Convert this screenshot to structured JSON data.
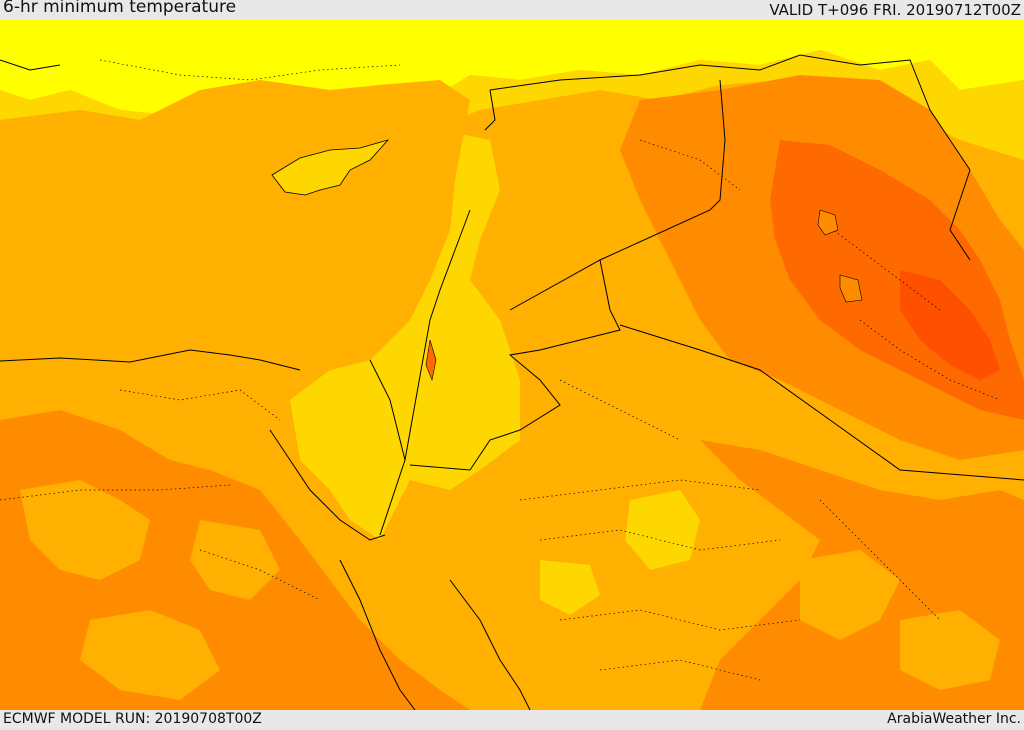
{
  "header": {
    "title": "6-hr minimum temperature",
    "valid": "VALID T+096 FRI. 20190712T00Z"
  },
  "footer": {
    "model_run": "ECMWF MODEL RUN: 20190708T00Z",
    "credit": "ArabiaWeather Inc."
  },
  "map": {
    "colors": {
      "pale_yellow": "#ffff00",
      "yellow": "#ffd700",
      "amber": "#ffb000",
      "orange": "#ff8c00",
      "dark_orange": "#ff6a00",
      "red_orange": "#ff5000",
      "border": "#000000"
    }
  }
}
